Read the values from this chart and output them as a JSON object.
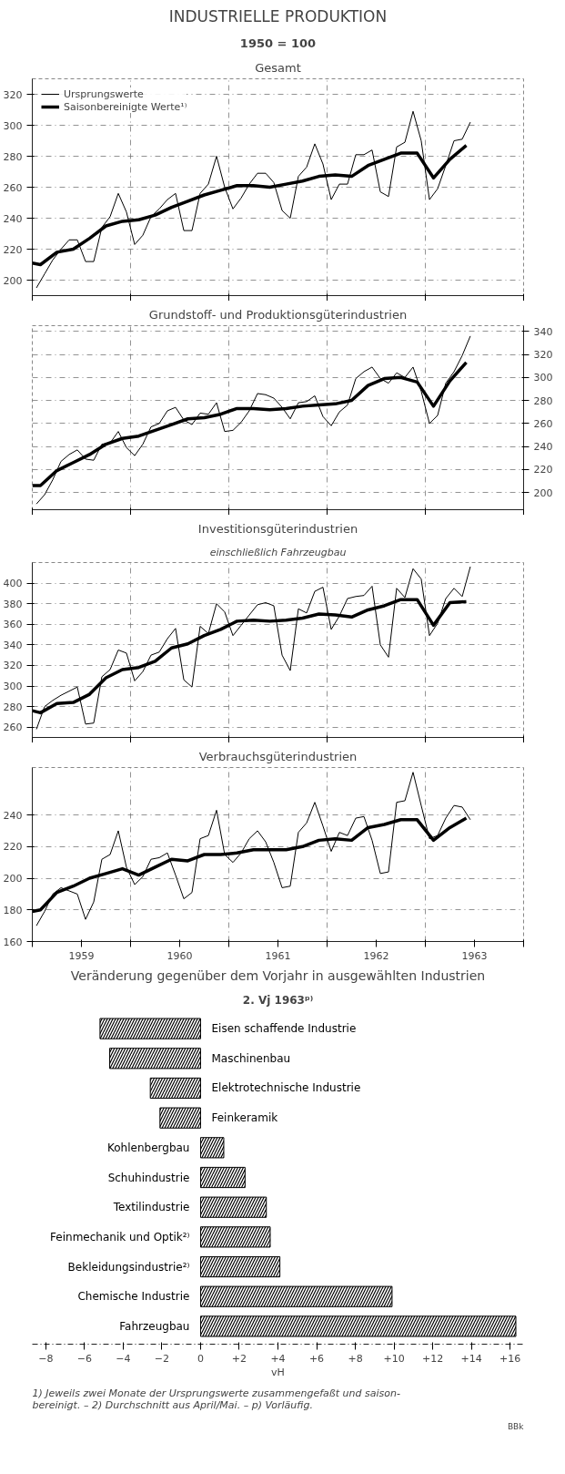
{
  "chart_data": [
    {
      "type": "line",
      "title": "INDUSTRIELLE PRODUKTION",
      "subtitle": "1950 = 100",
      "annotations": [
        "Gesamt"
      ],
      "legend": "top left",
      "grid": true,
      "tick_labels": "y",
      "xlim": [
        1959,
        1964
      ],
      "xticks": [
        {
          "value": 1959,
          "label": null
        },
        {
          "value": 1960,
          "label": null
        },
        {
          "value": 1961,
          "label": null
        },
        {
          "value": 1962,
          "label": null
        },
        {
          "value": 1963,
          "label": null
        },
        {
          "value": 1964,
          "label": null
        }
      ],
      "ylim": [
        190,
        330
      ],
      "yticks": [
        200,
        220,
        240,
        260,
        280,
        300,
        320
      ],
      "x": [
        1959.042,
        1959.125,
        1959.208,
        1959.292,
        1959.375,
        1959.458,
        1959.542,
        1959.625,
        1959.708,
        1959.792,
        1959.875,
        1959.958,
        1960.042,
        1960.125,
        1960.208,
        1960.292,
        1960.375,
        1960.458,
        1960.542,
        1960.625,
        1960.708,
        1960.792,
        1960.875,
        1960.958,
        1961.042,
        1961.125,
        1961.208,
        1961.292,
        1961.375,
        1961.458,
        1961.542,
        1961.625,
        1961.708,
        1961.792,
        1961.875,
        1961.958,
        1962.042,
        1962.125,
        1962.208,
        1962.292,
        1962.375,
        1962.458,
        1962.542,
        1962.625,
        1962.708,
        1962.792,
        1962.875,
        1962.958,
        1963.042,
        1963.125,
        1963.208,
        1963.292,
        1963.375,
        1963.458
      ],
      "series": [
        {
          "name": "Ursprungswerte",
          "color": "#000000",
          "values": [
            195,
            204,
            213,
            220,
            226,
            226,
            212,
            212,
            234,
            241,
            256,
            244,
            223,
            229,
            241,
            246,
            252,
            256,
            232,
            232,
            256,
            262,
            280,
            260,
            246,
            253,
            262,
            269,
            269,
            263,
            245,
            240,
            267,
            273,
            288,
            275,
            252,
            262,
            262,
            281,
            281,
            284,
            257,
            254,
            286,
            289,
            309,
            290,
            252,
            259,
            274,
            290,
            291,
            302
          ]
        },
        {
          "name": "Saisonbereinigte Werte¹⁾",
          "color": "#000000",
          "x": [
            1959,
            1959.083,
            1959.25,
            1959.417,
            1959.583,
            1959.75,
            1959.917,
            1960.083,
            1960.25,
            1960.417,
            1960.583,
            1960.75,
            1960.917,
            1961.083,
            1961.25,
            1961.417,
            1961.583,
            1961.75,
            1961.917,
            1962.083,
            1962.25,
            1962.417,
            1962.583,
            1962.75,
            1962.917,
            1963.083,
            1963.25,
            1963.417
          ],
          "values": [
            211,
            210,
            218,
            220,
            227,
            235,
            238,
            239,
            242,
            247,
            251,
            255,
            258,
            261,
            261,
            260,
            262,
            264,
            267,
            268,
            267,
            274,
            278,
            282,
            282,
            266,
            278,
            287
          ]
        }
      ]
    },
    {
      "type": "line",
      "title": "Grundstoff- und Produktionsgüterindustrien",
      "grid": true,
      "tick_labels": "y",
      "xlim": [
        1959,
        1964
      ],
      "xticks": [
        {
          "value": 1959,
          "label": null
        },
        {
          "value": 1960,
          "label": null
        },
        {
          "value": 1961,
          "label": null
        },
        {
          "value": 1962,
          "label": null
        },
        {
          "value": 1963,
          "label": null
        },
        {
          "value": 1964,
          "label": null
        }
      ],
      "y2lim": [
        185,
        345
      ],
      "y2ticks": [
        200,
        220,
        240,
        260,
        280,
        300,
        320,
        340
      ],
      "x": [
        1959.042,
        1959.125,
        1959.208,
        1959.292,
        1959.375,
        1959.458,
        1959.542,
        1959.625,
        1959.708,
        1959.792,
        1959.875,
        1959.958,
        1960.042,
        1960.125,
        1960.208,
        1960.292,
        1960.375,
        1960.458,
        1960.542,
        1960.625,
        1960.708,
        1960.792,
        1960.875,
        1960.958,
        1961.042,
        1961.125,
        1961.208,
        1961.292,
        1961.375,
        1961.458,
        1961.542,
        1961.625,
        1961.708,
        1961.792,
        1961.875,
        1961.958,
        1962.042,
        1962.125,
        1962.208,
        1962.292,
        1962.375,
        1962.458,
        1962.542,
        1962.625,
        1962.708,
        1962.792,
        1962.875,
        1962.958,
        1963.042,
        1963.125,
        1963.208,
        1963.292,
        1963.375,
        1963.458
      ],
      "series": [
        {
          "color": "#000000",
          "axis": "y2",
          "values": [
            190,
            198,
            211,
            227,
            233,
            237,
            229,
            228,
            242,
            243,
            253,
            239,
            232,
            242,
            257,
            260,
            271,
            274,
            263,
            259,
            269,
            268,
            278,
            253,
            254,
            261,
            271,
            286,
            285,
            282,
            274,
            264,
            278,
            279,
            284,
            266,
            258,
            270,
            276,
            299,
            305,
            309,
            299,
            295,
            304,
            300,
            309,
            288,
            260,
            267,
            295,
            305,
            319,
            336
          ]
        },
        {
          "color": "#000000",
          "axis": "y2",
          "x": [
            1959,
            1959.083,
            1959.25,
            1959.417,
            1959.583,
            1959.75,
            1959.917,
            1960.083,
            1960.25,
            1960.417,
            1960.583,
            1960.75,
            1960.917,
            1961.083,
            1961.25,
            1961.417,
            1961.583,
            1961.75,
            1961.917,
            1962.083,
            1962.25,
            1962.417,
            1962.583,
            1962.75,
            1962.917,
            1963.083,
            1963.25,
            1963.417
          ],
          "values": [
            206,
            206,
            219,
            226,
            233,
            242,
            247,
            249,
            254,
            259,
            264,
            265,
            268,
            273,
            273,
            272,
            273,
            275,
            276,
            277,
            280,
            293,
            299,
            300,
            296,
            275,
            297,
            313
          ]
        }
      ]
    },
    {
      "type": "line",
      "title": "Investitionsgüterindustrien",
      "subtitle": "einschließlich Fahrzeugbau",
      "grid": true,
      "tick_labels": "y",
      "xlim": [
        1959,
        1964
      ],
      "xticks": [
        {
          "value": 1959,
          "label": null
        },
        {
          "value": 1960,
          "label": null
        },
        {
          "value": 1961,
          "label": null
        },
        {
          "value": 1962,
          "label": null
        },
        {
          "value": 1963,
          "label": null
        },
        {
          "value": 1964,
          "label": null
        }
      ],
      "ylim": [
        250,
        420
      ],
      "yticks": [
        260,
        280,
        300,
        320,
        340,
        360,
        380,
        400
      ],
      "x": [
        1959.042,
        1959.125,
        1959.208,
        1959.292,
        1959.375,
        1959.458,
        1959.542,
        1959.625,
        1959.708,
        1959.792,
        1959.875,
        1959.958,
        1960.042,
        1960.125,
        1960.208,
        1960.292,
        1960.375,
        1960.458,
        1960.542,
        1960.625,
        1960.708,
        1960.792,
        1960.875,
        1960.958,
        1961.042,
        1961.125,
        1961.208,
        1961.292,
        1961.375,
        1961.458,
        1961.542,
        1961.625,
        1961.708,
        1961.792,
        1961.875,
        1961.958,
        1962.042,
        1962.125,
        1962.208,
        1962.292,
        1962.375,
        1962.458,
        1962.542,
        1962.625,
        1962.708,
        1962.792,
        1962.875,
        1962.958,
        1963.042,
        1963.125,
        1963.208,
        1963.292,
        1963.375,
        1963.458
      ],
      "series": [
        {
          "color": "#000000",
          "values": [
            258,
            280,
            286,
            291,
            295,
            299,
            263,
            264,
            309,
            316,
            335,
            332,
            305,
            314,
            330,
            333,
            346,
            356,
            306,
            299,
            358,
            351,
            380,
            372,
            349,
            359,
            369,
            379,
            381,
            378,
            330,
            315,
            375,
            371,
            392,
            396,
            355,
            368,
            385,
            387,
            388,
            397,
            340,
            328,
            395,
            386,
            414,
            404,
            349,
            361,
            385,
            395,
            387,
            416
          ]
        },
        {
          "color": "#000000",
          "x": [
            1959,
            1959.083,
            1959.25,
            1959.417,
            1959.583,
            1959.75,
            1959.917,
            1960.083,
            1960.25,
            1960.417,
            1960.583,
            1960.75,
            1960.917,
            1961.083,
            1961.25,
            1961.417,
            1961.583,
            1961.75,
            1961.917,
            1962.083,
            1962.25,
            1962.417,
            1962.583,
            1962.75,
            1962.917,
            1963.083,
            1963.25,
            1963.417
          ],
          "values": [
            276,
            274,
            283,
            284,
            292,
            308,
            316,
            318,
            324,
            337,
            341,
            349,
            355,
            363,
            364,
            363,
            364,
            366,
            370,
            369,
            367,
            374,
            378,
            384,
            384,
            359,
            381,
            382
          ]
        }
      ]
    },
    {
      "type": "line",
      "title": "Verbrauchsgüterindustrien",
      "grid": true,
      "xlim": [
        1959,
        1964
      ],
      "xticks": [
        {
          "value": 1959,
          "label": null
        },
        {
          "value": 1959.5,
          "label": "1959"
        },
        {
          "value": 1960,
          "label": null
        },
        {
          "value": 1960.5,
          "label": "1960"
        },
        {
          "value": 1961,
          "label": null
        },
        {
          "value": 1961.5,
          "label": "1961"
        },
        {
          "value": 1962,
          "label": null
        },
        {
          "value": 1962.5,
          "label": "1962"
        },
        {
          "value": 1963,
          "label": null
        },
        {
          "value": 1963.5,
          "label": "1963"
        },
        {
          "value": 1964,
          "label": null
        }
      ],
      "ylim": [
        160,
        270
      ],
      "yticks": [
        160,
        180,
        200,
        220,
        240
      ],
      "x": [
        1959.042,
        1959.125,
        1959.208,
        1959.292,
        1959.375,
        1959.458,
        1959.542,
        1959.625,
        1959.708,
        1959.792,
        1959.875,
        1959.958,
        1960.042,
        1960.125,
        1960.208,
        1960.292,
        1960.375,
        1960.458,
        1960.542,
        1960.625,
        1960.708,
        1960.792,
        1960.875,
        1960.958,
        1961.042,
        1961.125,
        1961.208,
        1961.292,
        1961.375,
        1961.458,
        1961.542,
        1961.625,
        1961.708,
        1961.792,
        1961.875,
        1961.958,
        1962.042,
        1962.125,
        1962.208,
        1962.292,
        1962.375,
        1962.458,
        1962.542,
        1962.625,
        1962.708,
        1962.792,
        1962.875,
        1962.958,
        1963.042,
        1963.125,
        1963.208,
        1963.292,
        1963.375,
        1963.458
      ],
      "series": [
        {
          "color": "#000000",
          "values": [
            170,
            179,
            190,
            194,
            192,
            190,
            174,
            185,
            212,
            215,
            230,
            207,
            196,
            201,
            212,
            213,
            216,
            202,
            187,
            191,
            225,
            227,
            243,
            215,
            210,
            216,
            225,
            230,
            223,
            210,
            194,
            195,
            229,
            235,
            248,
            233,
            217,
            229,
            227,
            238,
            239,
            224,
            203,
            204,
            248,
            249,
            267,
            246,
            225,
            227,
            238,
            246,
            245,
            237
          ]
        },
        {
          "color": "#000000",
          "x": [
            1959,
            1959.083,
            1959.25,
            1959.417,
            1959.583,
            1959.75,
            1959.917,
            1960.083,
            1960.25,
            1960.417,
            1960.583,
            1960.75,
            1960.917,
            1961.083,
            1961.25,
            1961.417,
            1961.583,
            1961.75,
            1961.917,
            1962.083,
            1962.25,
            1962.417,
            1962.583,
            1962.75,
            1962.917,
            1963.083,
            1963.25,
            1963.417
          ],
          "values": [
            179,
            180,
            191,
            195,
            200,
            203,
            206,
            202,
            207,
            212,
            211,
            215,
            215,
            216,
            218,
            218,
            218,
            220,
            224,
            225,
            224,
            232,
            234,
            237,
            237,
            224,
            232,
            238
          ]
        }
      ]
    },
    {
      "type": "bar",
      "orientation": "horizontal",
      "title": "Veränderung gegenüber dem Vorjahr in ausgewählten Industrien",
      "subtitle": "2. Vj 1963ᵖ⁾",
      "xlabel": "vH",
      "categories": [
        "Eisen schaffende Industrie",
        "Maschinenbau",
        "Elektrotechnische Industrie",
        "Feinkeramik",
        "Kohlenbergbau",
        "Schuhindustrie",
        "Textilindustrie",
        "Feinmechanik und Optik²⁾",
        "Bekleidungsindustrie²⁾",
        "Chemische Industrie",
        "Fahrzeugbau"
      ],
      "values": [
        -5.2,
        -4.7,
        -2.6,
        -2.1,
        1.2,
        2.3,
        3.4,
        3.6,
        4.1,
        9.9,
        16.3
      ],
      "color": "#000000",
      "xlim": [
        -8.7,
        16.7
      ],
      "xticks": [
        {
          "value": -8,
          "label": "−8"
        },
        {
          "value": -6,
          "label": "−6"
        },
        {
          "value": -4,
          "label": "−4"
        },
        {
          "value": -2,
          "label": "−2"
        },
        0,
        {
          "value": 2,
          "label": "+2"
        },
        {
          "value": 4,
          "label": "+4"
        },
        {
          "value": 6,
          "label": "+6"
        },
        {
          "value": 8,
          "label": "+8"
        },
        {
          "value": 10,
          "label": "+10"
        },
        {
          "value": 12,
          "label": "+12"
        },
        {
          "value": 14,
          "label": "+14"
        },
        {
          "value": 16,
          "label": "+16"
        }
      ],
      "annotations": [
        "1) Jeweils zwei Monate der Ursprungswerte zusammengefaßt und saison-\nbereinigt. – 2) Durchschnitt aus April/Mai. – p) Vorläufig.",
        "BBk"
      ]
    }
  ]
}
